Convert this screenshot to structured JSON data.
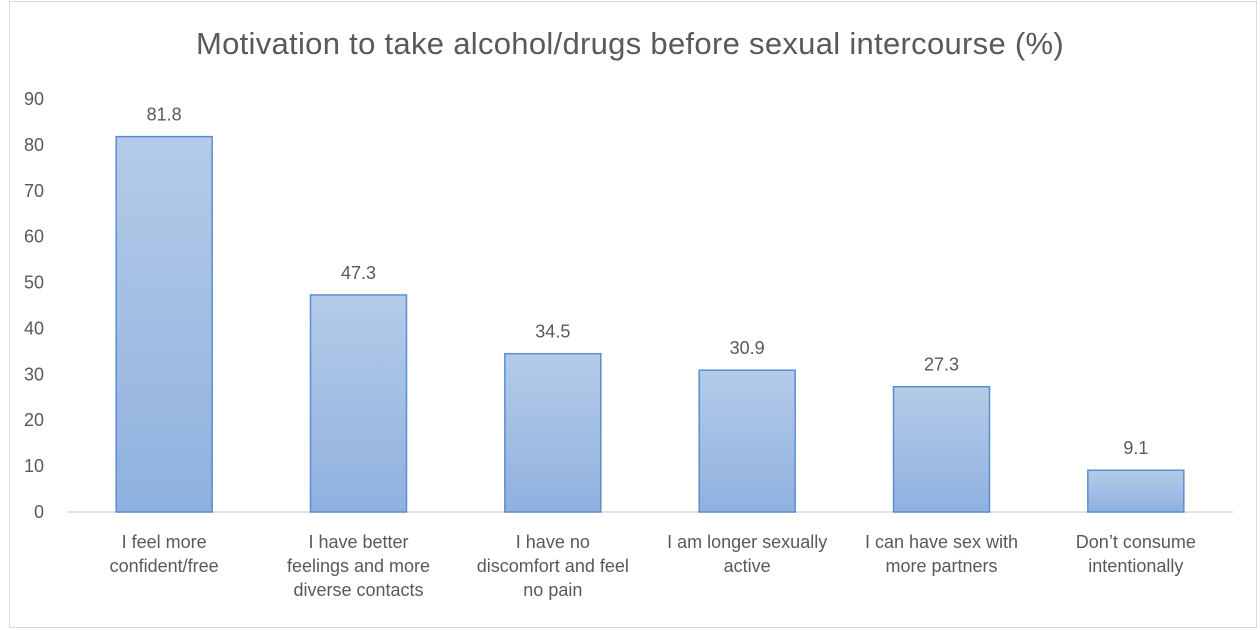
{
  "chart_data": {
    "type": "bar",
    "title": "Motivation to take alcohol/drugs before sexual intercourse (%)",
    "categories": [
      [
        "I feel more",
        "confident/free"
      ],
      [
        "I have better",
        "feelings and more",
        "diverse contacts"
      ],
      [
        "I have no",
        "discomfort and feel",
        "no pain"
      ],
      [
        "I am longer sexually",
        "active"
      ],
      [
        "I can have sex with",
        "more partners"
      ],
      [
        "Don’t consume",
        "intentionally"
      ]
    ],
    "values": [
      81.8,
      47.3,
      34.5,
      30.9,
      27.3,
      9.1
    ],
    "data_labels": [
      "81.8",
      "47.3",
      "34.5",
      "30.9",
      "27.3",
      "9.1"
    ],
    "ylim": [
      0,
      90
    ],
    "yticks": [
      "0",
      "10",
      "20",
      "30",
      "40",
      "50",
      "60",
      "70",
      "80",
      "90"
    ],
    "grid": false,
    "legend": "none",
    "bar_color_top": "#b4cbe9",
    "bar_color_bottom": "#8fb1df",
    "bar_border": "#5b8ed0"
  }
}
